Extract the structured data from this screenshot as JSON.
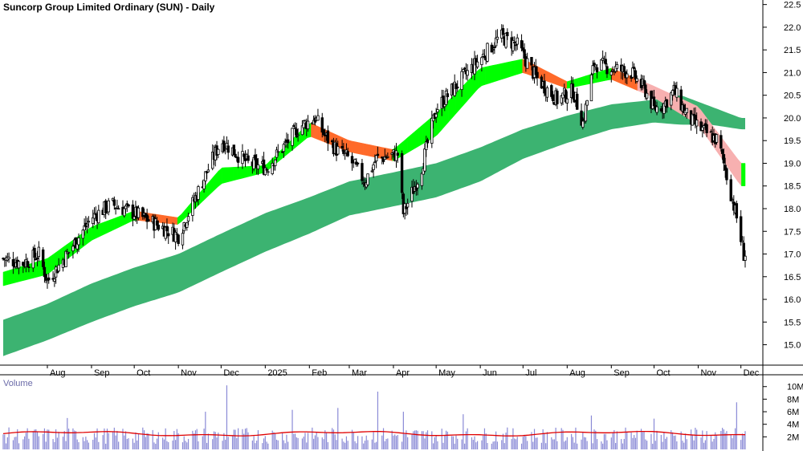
{
  "chart_data": {
    "type": "candlestick",
    "title": "Suncorp Group Limited Ordinary (SUN) - Daily",
    "price_axis": {
      "ylim": [
        14.55,
        22.6
      ],
      "ticks": [
        "22.5",
        "22.0",
        "21.5",
        "21.0",
        "20.5",
        "20.0",
        "19.5",
        "19.0",
        "18.5",
        "18.0",
        "17.5",
        "17.0",
        "16.5",
        "16.0",
        "15.5",
        "15.0"
      ]
    },
    "x_axis": {
      "labels": [
        "Aug",
        "Sep",
        "Oct",
        "Nov",
        "Dec",
        "2025",
        "Feb",
        "Mar",
        "Apr",
        "May",
        "Jun",
        "Jul",
        "Aug",
        "Sep",
        "Oct",
        "Nov",
        "Dec"
      ],
      "label_dates": [
        "2024-08-01",
        "2024-09-01",
        "2024-10-01",
        "2024-11-01",
        "2024-12-01",
        "2025-01-01",
        "2025-02-01",
        "2025-03-01",
        "2025-04-01",
        "2025-05-01",
        "2025-06-01",
        "2025-07-01",
        "2025-08-01",
        "2025-09-01",
        "2025-10-01",
        "2025-11-01",
        "2025-12-01"
      ],
      "start": "2024-07-01",
      "end": "2025-12-04"
    },
    "close_path": {
      "dates": [
        "2024-07-01",
        "2024-07-15",
        "2024-07-26",
        "2024-08-01",
        "2024-08-15",
        "2024-09-01",
        "2024-09-15",
        "2024-10-01",
        "2024-10-20",
        "2024-11-01",
        "2024-11-18",
        "2024-12-01",
        "2024-12-20",
        "2025-01-02",
        "2025-01-25",
        "2025-02-05",
        "2025-02-12",
        "2025-02-20",
        "2025-03-01",
        "2025-03-12",
        "2025-03-20",
        "2025-04-04",
        "2025-04-08",
        "2025-04-20",
        "2025-05-01",
        "2025-05-20",
        "2025-06-01",
        "2025-06-15",
        "2025-06-27",
        "2025-07-10",
        "2025-07-25",
        "2025-08-05",
        "2025-08-12",
        "2025-08-20",
        "2025-09-01",
        "2025-09-15",
        "2025-09-25",
        "2025-10-01",
        "2025-10-08",
        "2025-10-15",
        "2025-10-25",
        "2025-11-05",
        "2025-11-15",
        "2025-11-22",
        "2025-11-28",
        "2025-12-03"
      ],
      "values": [
        16.9,
        16.8,
        17.0,
        16.4,
        17.0,
        17.8,
        18.1,
        17.9,
        17.6,
        17.4,
        18.6,
        19.5,
        19.0,
        18.9,
        19.8,
        20.0,
        19.6,
        19.3,
        19.1,
        18.6,
        19.1,
        19.2,
        17.9,
        18.8,
        20.2,
        20.9,
        21.3,
        21.8,
        21.6,
        20.9,
        20.4,
        20.6,
        19.9,
        21.2,
        21.1,
        21.0,
        20.6,
        20.2,
        20.3,
        20.6,
        20.0,
        19.7,
        19.5,
        18.6,
        17.8,
        17.0
      ]
    },
    "short_ma_band": {
      "dates": [
        "2024-07-01",
        "2024-08-01",
        "2024-09-01",
        "2024-10-01",
        "2024-11-01",
        "2024-12-01",
        "2025-01-01",
        "2025-02-01",
        "2025-03-01",
        "2025-04-01",
        "2025-05-01",
        "2025-06-01",
        "2025-07-01",
        "2025-08-01",
        "2025-09-01",
        "2025-10-01",
        "2025-11-01",
        "2025-12-01"
      ],
      "upper": [
        16.6,
        16.9,
        17.6,
        17.95,
        17.8,
        18.9,
        18.95,
        19.9,
        19.5,
        19.3,
        20.1,
        21.1,
        21.3,
        20.8,
        21.1,
        20.7,
        20.25,
        19.0
      ],
      "lower": [
        16.3,
        16.55,
        17.3,
        17.75,
        17.65,
        18.55,
        18.8,
        19.6,
        19.25,
        19.05,
        19.6,
        20.7,
        21.0,
        20.65,
        20.85,
        20.45,
        19.85,
        18.5
      ],
      "bullish_color": "#00ff00",
      "bearish_color": "#ff6a2a",
      "pale_bearish_color": "#f7b0b0"
    },
    "long_ma_band": {
      "dates": [
        "2024-07-01",
        "2024-08-01",
        "2024-09-01",
        "2024-10-01",
        "2024-11-01",
        "2024-12-01",
        "2025-01-01",
        "2025-02-01",
        "2025-03-01",
        "2025-04-01",
        "2025-05-01",
        "2025-06-01",
        "2025-07-01",
        "2025-08-01",
        "2025-09-01",
        "2025-10-01",
        "2025-10-20",
        "2025-11-10",
        "2025-12-01"
      ],
      "upper": [
        15.55,
        15.9,
        16.35,
        16.7,
        17.0,
        17.45,
        17.9,
        18.25,
        18.6,
        18.8,
        19.0,
        19.35,
        19.75,
        20.05,
        20.3,
        20.4,
        20.5,
        20.25,
        20.0
      ],
      "lower": [
        14.75,
        15.1,
        15.5,
        15.85,
        16.15,
        16.6,
        17.05,
        17.45,
        17.85,
        18.05,
        18.25,
        18.6,
        19.1,
        19.45,
        19.75,
        19.9,
        19.85,
        19.85,
        19.75
      ],
      "color": "#3cb371",
      "bearish_color": "#ff6a2a"
    },
    "volume": {
      "label": "Volume",
      "ticks": [
        "10M",
        "8M",
        "6M",
        "4M",
        "2M"
      ],
      "ylim": [
        0,
        11.5
      ],
      "ma_value": 2.5,
      "spikes": [
        {
          "date": "2024-12-05",
          "value": 10.2
        },
        {
          "date": "2025-03-21",
          "value": 9.2
        },
        {
          "date": "2025-11-28",
          "value": 7.5
        },
        {
          "date": "2024-08-15",
          "value": 5.0
        },
        {
          "date": "2024-09-14",
          "value": 5.5
        },
        {
          "date": "2024-11-20",
          "value": 6.0
        },
        {
          "date": "2025-01-20",
          "value": 6.3
        },
        {
          "date": "2025-02-21",
          "value": 6.6
        },
        {
          "date": "2025-04-08",
          "value": 6.0
        },
        {
          "date": "2025-05-20",
          "value": 5.6
        },
        {
          "date": "2025-08-18",
          "value": 5.4
        },
        {
          "date": "2025-10-01",
          "value": 4.9
        }
      ],
      "bar_color": "#8a8ad6",
      "ma_color": "#e00000"
    }
  }
}
